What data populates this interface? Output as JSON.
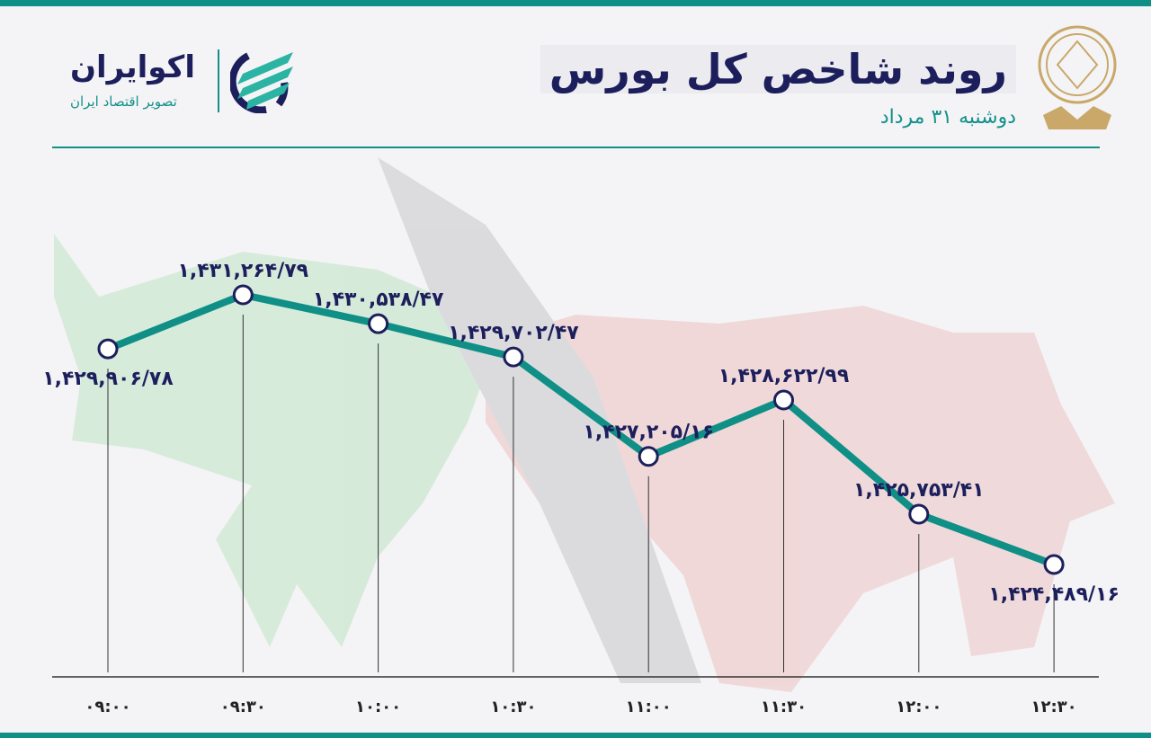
{
  "header": {
    "title": "روند شاخص کل بورس",
    "subtitle": "دوشنبه ۳۱ مرداد"
  },
  "logo": {
    "name": "اکوایران",
    "tagline": "تصویر اقتصاد ایران"
  },
  "colors": {
    "accent": "#0f8f86",
    "label": "#1c1f5c",
    "bull": "#bfe3c4",
    "bear": "#edc2c2"
  },
  "chart_data": {
    "type": "line",
    "title": "روند شاخص کل بورس",
    "x": [
      "۰۹:۰۰",
      "۰۹:۳۰",
      "۱۰:۰۰",
      "۱۰:۳۰",
      "۱۱:۰۰",
      "۱۱:۳۰",
      "۱۲:۰۰",
      "۱۲:۳۰"
    ],
    "values": [
      1429906.78,
      1431264.79,
      1430538.47,
      1429702.47,
      1427205.16,
      1428622.99,
      1425753.41,
      1424489.16
    ],
    "data_labels": [
      "۱,۴۲۹,۹۰۶/۷۸",
      "۱,۴۳۱,۲۶۴/۷۹",
      "۱,۴۳۰,۵۳۸/۴۷",
      "۱,۴۲۹,۷۰۲/۴۷",
      "۱,۴۲۷,۲۰۵/۱۶",
      "۱,۴۲۸,۶۲۲/۹۹",
      "۱,۴۲۵,۷۵۳/۴۱",
      "۱,۴۲۴,۴۸۹/۱۶"
    ],
    "grid": false
  }
}
